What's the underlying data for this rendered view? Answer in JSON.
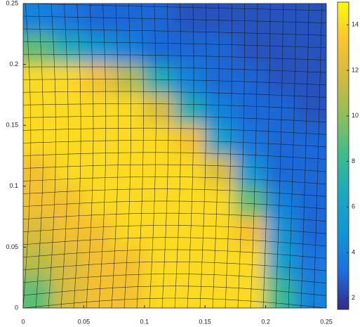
{
  "chart_data": {
    "type": "heatmap",
    "xlim": [
      0,
      0.25
    ],
    "ylim": [
      0,
      0.25
    ],
    "xticks": [
      0,
      0.05,
      0.1,
      0.15,
      0.2,
      0.25
    ],
    "yticks": [
      0,
      0.05,
      0.1,
      0.15,
      0.2,
      0.25
    ],
    "clim": [
      1.5,
      15
    ],
    "cticks": [
      2,
      4,
      6,
      8,
      10,
      12,
      14
    ],
    "colormap": [
      "#352a87",
      "#1c6fe0",
      "#1296d4",
      "#1ca7c0",
      "#3cbc8c",
      "#8cbf5a",
      "#d0ba40",
      "#fbc330",
      "#f9fb0e"
    ],
    "z": [
      [
        4,
        3.5,
        3,
        3,
        3,
        2.5,
        2.5,
        2.5,
        2.5,
        2.5
      ],
      [
        9,
        7,
        5,
        4,
        3,
        3,
        3,
        2.5,
        2.5,
        2.5
      ],
      [
        14,
        14,
        13,
        11,
        7,
        4,
        3,
        3,
        2.5,
        2.5
      ],
      [
        14,
        14,
        14,
        14,
        12,
        7,
        4,
        3,
        3,
        2.5
      ],
      [
        14,
        14,
        14,
        14,
        14,
        13,
        6,
        3.5,
        3,
        3
      ],
      [
        13,
        14,
        14,
        14,
        14,
        14,
        12,
        5,
        3,
        3
      ],
      [
        13,
        13,
        14,
        14,
        14,
        14,
        14,
        9,
        4,
        3
      ],
      [
        12,
        13,
        13,
        14,
        14,
        14,
        14,
        13,
        5,
        3
      ],
      [
        11,
        12,
        13,
        13,
        14,
        14,
        14,
        14,
        6,
        3.5
      ],
      [
        9,
        12,
        13,
        13,
        14,
        14,
        14,
        14,
        8,
        4
      ]
    ]
  }
}
